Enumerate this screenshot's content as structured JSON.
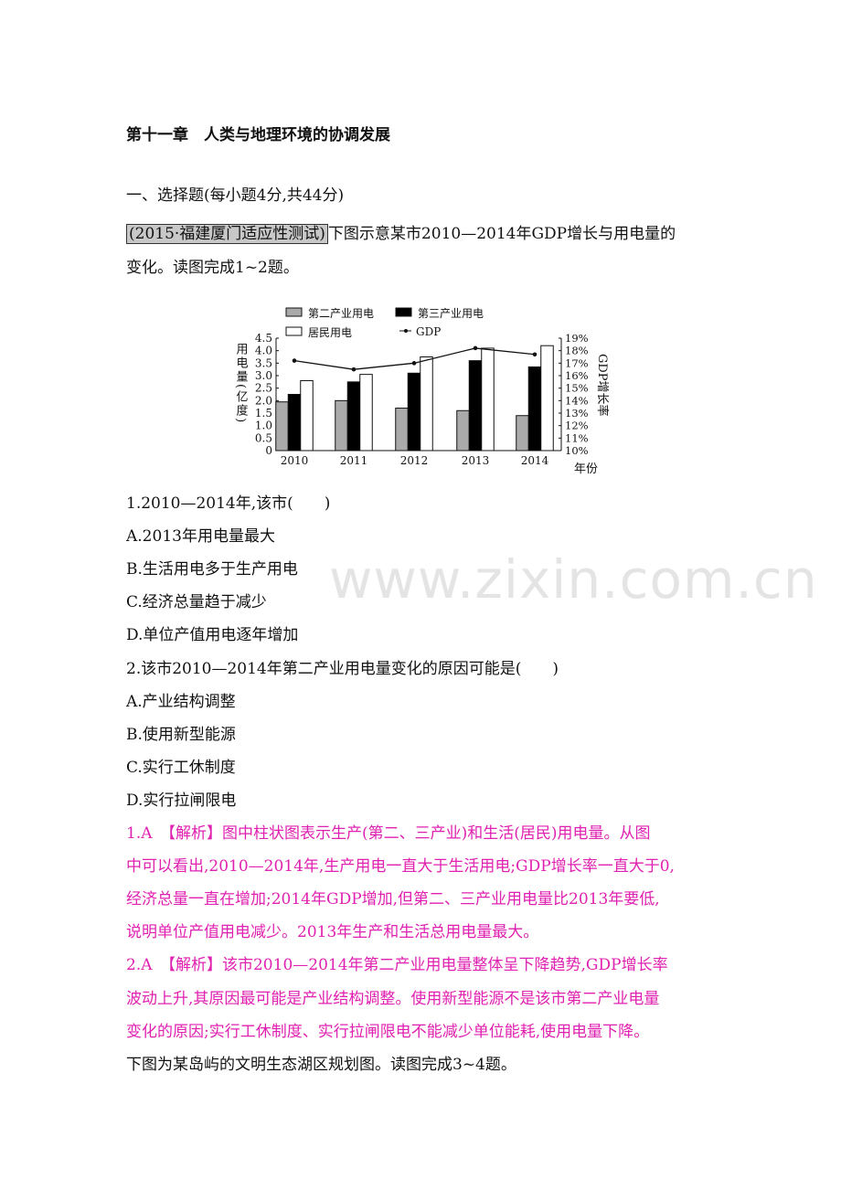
{
  "chapter_title": "第十一章　人类与地理环境的协调发展",
  "section": "一、选择题(每小题4分,共44分)",
  "intro": {
    "source": "(2015·福建厦门适应性测试)",
    "text1": "下图示意某市2010—2014年GDP增长与用电量的",
    "text2": "变化。读图完成1~2题。"
  },
  "watermark": "www.zixin.com.cn",
  "chart_data": {
    "type": "bar",
    "categories": [
      "2010",
      "2011",
      "2012",
      "2013",
      "2014"
    ],
    "xlabel": "年份",
    "ylabel": "用电量(亿度)",
    "y2label": "GDP增长率",
    "ylim": [
      0,
      4.5
    ],
    "y_ticks": [
      "0",
      "0.5",
      "1.0",
      "1.5",
      "2.0",
      "2.5",
      "3.0",
      "3.5",
      "4.0",
      "4.5"
    ],
    "y2lim": [
      10,
      19
    ],
    "y2_ticks": [
      "10%",
      "11%",
      "12%",
      "13%",
      "14%",
      "15%",
      "16%",
      "17%",
      "18%",
      "19%"
    ],
    "legend_placement": "top",
    "series": [
      {
        "name": "第二产业用电",
        "kind": "bar",
        "color": "#aaaaaa",
        "values": [
          1.95,
          2.0,
          1.7,
          1.6,
          1.4
        ]
      },
      {
        "name": "第三产业用电",
        "kind": "bar",
        "color": "#000000",
        "values": [
          2.25,
          2.75,
          3.1,
          3.6,
          3.35
        ]
      },
      {
        "name": "居民用电",
        "kind": "bar",
        "color": "#ffffff",
        "values": [
          2.8,
          3.05,
          3.75,
          4.1,
          4.2
        ]
      },
      {
        "name": "GDP",
        "kind": "line",
        "axis": "right",
        "color": "#000000",
        "values": [
          17.2,
          16.5,
          17.0,
          18.2,
          17.7
        ]
      }
    ]
  },
  "questions": [
    {
      "stem": "1.2010—2014年,该市(　　)",
      "options": [
        "A.2013年用电量最大",
        "B.生活用电多于生产用电",
        "C.经济总量趋于减少",
        "D.单位产值用电逐年增加"
      ]
    },
    {
      "stem": "2.该市2010—2014年第二产业用电量变化的原因可能是(　　)",
      "options": [
        "A.产业结构调整",
        "B.使用新型能源",
        "C.实行工休制度",
        "D.实行拉闸限电"
      ]
    }
  ],
  "answers": [
    "1.A　【解析】图中柱状图表示生产(第二、三产业)和生活(居民)用电量。从图",
    "中可以看出,2010—2014年,生产用电一直大于生活用电;GDP增长率一直大于0,",
    "经济总量一直在增加;2014年GDP增加,但第二、三产业用电量比2013年要低,",
    "说明单位产值用电减少。2013年生产和生活总用电量最大。",
    "2.A　【解析】该市2010—2014年第二产业用电量整体呈下降趋势,GDP增长率",
    "波动上升,其原因最可能是产业结构调整。使用新型能源不是该市第二产业电量",
    "变化的原因;实行工休制度、实行拉闸限电不能减少单位能耗,使用电量下降。"
  ],
  "next_intro": "下图为某岛屿的文明生态湖区规划图。读图完成3~4题。"
}
